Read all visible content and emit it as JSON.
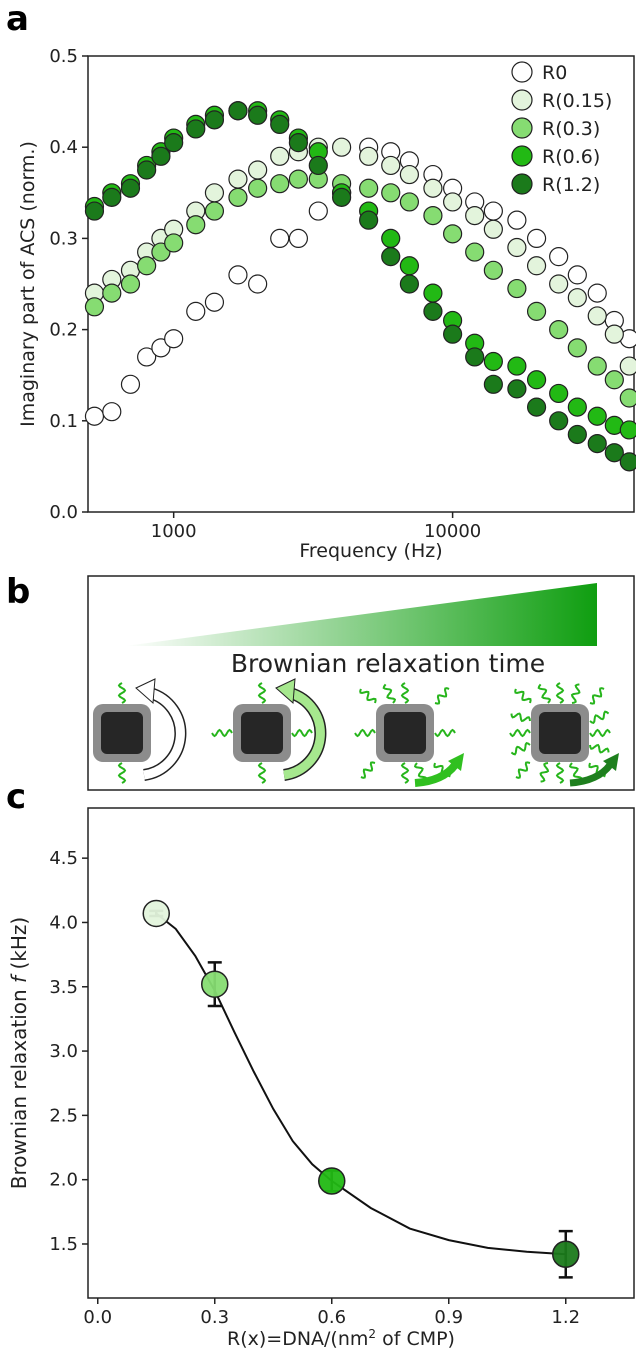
{
  "chart_data": [
    {
      "type": "scatter",
      "panel_label": "a",
      "xscale": "log",
      "x_label": "Frequency (Hz)",
      "y_label": "Imaginary part of ACS (norm.)",
      "xlim": [
        493,
        44700
      ],
      "ylim": [
        0,
        0.5
      ],
      "xticks": [
        1000,
        10000
      ],
      "yticks": [
        {
          "value": 0,
          "label": "0.0"
        },
        0.1,
        0.2,
        0.3,
        0.4,
        0.5
      ],
      "legend": "upper right",
      "x": [
        520,
        600,
        700,
        800,
        900,
        1000,
        1200,
        1400,
        1700,
        2000,
        2400,
        2800,
        3300,
        4000,
        5000,
        6000,
        7000,
        8500,
        10000,
        12000,
        14000,
        17000,
        20000,
        24000,
        28000,
        33000,
        38000,
        43000
      ],
      "series": [
        {
          "name": "R0",
          "color": "#ffffff",
          "values": [
            0.105,
            0.11,
            0.14,
            0.17,
            0.18,
            0.19,
            0.22,
            0.23,
            0.26,
            0.25,
            0.3,
            0.3,
            0.33,
            0.35,
            0.4,
            0.395,
            0.385,
            0.37,
            0.355,
            0.34,
            0.33,
            0.32,
            0.3,
            0.28,
            0.26,
            0.24,
            0.21,
            0.19
          ]
        },
        {
          "name": "R(0.15)",
          "color": "#e3f4dc",
          "values": [
            0.24,
            0.255,
            0.265,
            0.285,
            0.3,
            0.31,
            0.33,
            0.35,
            0.365,
            0.375,
            0.39,
            0.395,
            0.4,
            0.4,
            0.39,
            0.38,
            0.37,
            0.355,
            0.34,
            0.325,
            0.31,
            0.29,
            0.27,
            0.25,
            0.235,
            0.215,
            0.195,
            0.16
          ]
        },
        {
          "name": "R(0.3)",
          "color": "#86dc72",
          "values": [
            0.225,
            0.24,
            0.25,
            0.27,
            0.285,
            0.295,
            0.315,
            0.33,
            0.345,
            0.355,
            0.36,
            0.365,
            0.365,
            0.36,
            0.355,
            0.35,
            0.34,
            0.325,
            0.305,
            0.285,
            0.265,
            0.245,
            0.22,
            0.2,
            0.18,
            0.16,
            0.145,
            0.125
          ]
        },
        {
          "name": "R(0.6)",
          "color": "#22b914",
          "values": [
            0.335,
            0.35,
            0.36,
            0.38,
            0.395,
            0.41,
            0.425,
            0.435,
            0.44,
            0.44,
            0.43,
            0.41,
            0.395,
            0.35,
            0.33,
            0.3,
            0.27,
            0.24,
            0.21,
            0.185,
            0.165,
            0.16,
            0.145,
            0.13,
            0.115,
            0.105,
            0.095,
            0.09
          ]
        },
        {
          "name": "R(1.2)",
          "color": "#1b7a1b",
          "values": [
            0.33,
            0.345,
            0.355,
            0.375,
            0.39,
            0.405,
            0.42,
            0.43,
            0.44,
            0.435,
            0.425,
            0.405,
            0.38,
            0.345,
            0.32,
            0.28,
            0.25,
            0.22,
            0.195,
            0.17,
            0.14,
            0.135,
            0.115,
            0.1,
            0.085,
            0.075,
            0.065,
            0.055
          ]
        }
      ]
    },
    {
      "type": "scatter",
      "panel_label": "c",
      "x_label": [
        "R(x)=DNA/(nm",
        "2",
        " of CMP)"
      ],
      "y_label": [
        "Brownian relaxation ",
        "f",
        " (kHz)"
      ],
      "xlim": [
        -0.025,
        1.375
      ],
      "ylim": [
        1.08,
        4.89
      ],
      "xticks": [
        {
          "value": 0,
          "label": "0.0"
        },
        0.3,
        0.6,
        0.9,
        1.2
      ],
      "yticks": [
        1.5,
        {
          "value": 2,
          "label": "2.0"
        },
        2.5,
        {
          "value": 3,
          "label": "3.0"
        },
        3.5,
        {
          "value": 4,
          "label": "4.0"
        },
        4.5
      ],
      "x": [
        0.15,
        0.3,
        0.6,
        1.2
      ],
      "values": [
        4.07,
        3.52,
        1.99,
        1.42
      ],
      "errors": [
        0.02,
        0.17,
        0.08,
        0.18
      ],
      "colors": [
        "#e3f4dc",
        "#86dc72",
        "#22b914",
        "#1b7a1b"
      ],
      "fit": {
        "x": [
          0.15,
          0.2,
          0.25,
          0.3,
          0.35,
          0.4,
          0.45,
          0.5,
          0.55,
          0.6,
          0.7,
          0.8,
          0.9,
          1.0,
          1.1,
          1.2
        ],
        "y": [
          4.07,
          3.95,
          3.74,
          3.47,
          3.15,
          2.84,
          2.55,
          2.3,
          2.12,
          1.99,
          1.78,
          1.62,
          1.53,
          1.47,
          1.44,
          1.42
        ]
      }
    }
  ],
  "diagram": {
    "panel_label": "b",
    "caption": "Brownian relaxation time"
  }
}
